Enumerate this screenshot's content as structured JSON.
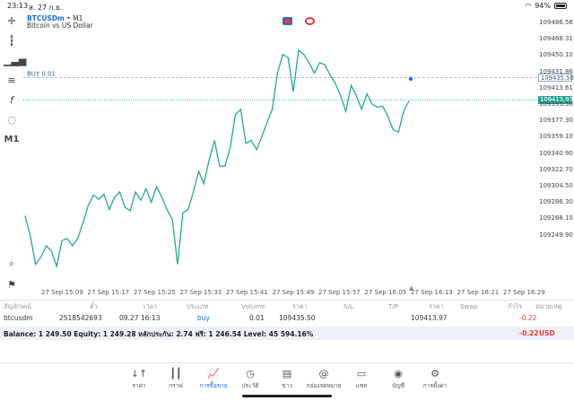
{
  "status": {
    "time": "23:13",
    "date": "ส. 27 ก.ย.",
    "battery": "94%"
  },
  "chart": {
    "symbol": "BTCUSDm",
    "timeframe_sep": "•",
    "timeframe": "M1",
    "subtitle": "Bitcoin vs US Dollar",
    "buy_label": "BUY 0.01",
    "ask_price": "109435.50",
    "bid_price": "109413.97",
    "up_color": "#26a69a",
    "price_ticks": [
      "109486.56",
      "109468.31",
      "109450.10",
      "109431.86",
      "109413.61",
      "109395.50",
      "109377.30",
      "109359.10",
      "109340.90",
      "109322.70",
      "109304.50",
      "109286.30",
      "109268.10",
      "109249.90"
    ],
    "time_ticks": [
      "27 Sep 15:09",
      "27 Sep 15:17",
      "27 Sep 15:25",
      "27 Sep 15:33",
      "27 Sep 15:41",
      "27 Sep 15:49",
      "27 Sep 15:57",
      "27 Sep 16:05",
      "27 Sep 16:13",
      "27 Sep 16:21",
      "27 Sep 16:29"
    ],
    "left_tool_timeframe": "M1"
  },
  "chart_data": {
    "type": "line",
    "title": "BTCUSDm • M1",
    "subtitle": "Bitcoin vs US Dollar",
    "xlabel": "",
    "ylabel": "",
    "ylim": [
      109240,
      109495
    ],
    "y": [
      109302,
      109282,
      109255,
      109262,
      109273,
      109268,
      109253,
      109278,
      109280,
      109273,
      109280,
      109295,
      109312,
      109322,
      109318,
      109323,
      109308,
      109320,
      109325,
      109310,
      109307,
      109325,
      109317,
      109328,
      109315,
      109330,
      109320,
      109308,
      109298,
      109255,
      109305,
      109308,
      109325,
      109345,
      109333,
      109356,
      109375,
      109350,
      109350,
      109368,
      109400,
      109405,
      109372,
      109375,
      109366,
      109378,
      109392,
      109405,
      109440,
      109458,
      109455,
      109422,
      109462,
      109458,
      109450,
      109440,
      109450,
      109448,
      109438,
      109430,
      109418,
      109403,
      109428,
      109418,
      109405,
      109420,
      109410,
      109407,
      109408,
      109398,
      109385,
      109383,
      109403,
      109413
    ],
    "series": [
      {
        "name": "BTCUSDm",
        "color": "#26a69a"
      }
    ],
    "horizontal_lines": [
      {
        "label": "BUY 0.01",
        "value": 109435.5,
        "style": "dashed"
      },
      {
        "label": "Bid",
        "value": 109413.97,
        "style": "dotted"
      }
    ],
    "grid": false
  },
  "table": {
    "headers": [
      "สัญลักษณ์",
      "ตั๋ว",
      "เวลา",
      "ประเภท",
      "Volume",
      "ราคา",
      "S/L",
      "T/P",
      "ราคา",
      "Swap",
      "กำไร",
      "หมายเหตุ"
    ],
    "row": {
      "symbol": "btcusdm",
      "ticket": "2518542693",
      "time": "09.27 16:13",
      "type": "buy",
      "volume": "0.01",
      "open_price": "109435.50",
      "sl": "",
      "tp": "",
      "price": "109413.97",
      "swap": "",
      "profit": "-0.22",
      "comment": ""
    },
    "balance_text": "Balance: 1 249.50 Equity: 1 249.28 หลักประกัน: 2.74 ฟรี: 1 246.54 Level: 45 594.16%",
    "total_profit": "-0.22",
    "currency": "USD"
  },
  "nav": {
    "items": [
      {
        "label": "ราคา",
        "icon": "↓↑"
      },
      {
        "label": "กราฟ",
        "icon": "┃┃"
      },
      {
        "label": "การซื้อขาย",
        "icon": "📈"
      },
      {
        "label": "ประวัติ",
        "icon": "◷"
      },
      {
        "label": "ข่าว",
        "icon": "▤"
      },
      {
        "label": "กล่องจดหมาย",
        "icon": "@"
      },
      {
        "label": "แชท",
        "icon": "▭"
      },
      {
        "label": "บัญชี",
        "icon": "◉"
      },
      {
        "label": "การตั้งค่า",
        "icon": "⚙"
      }
    ]
  }
}
